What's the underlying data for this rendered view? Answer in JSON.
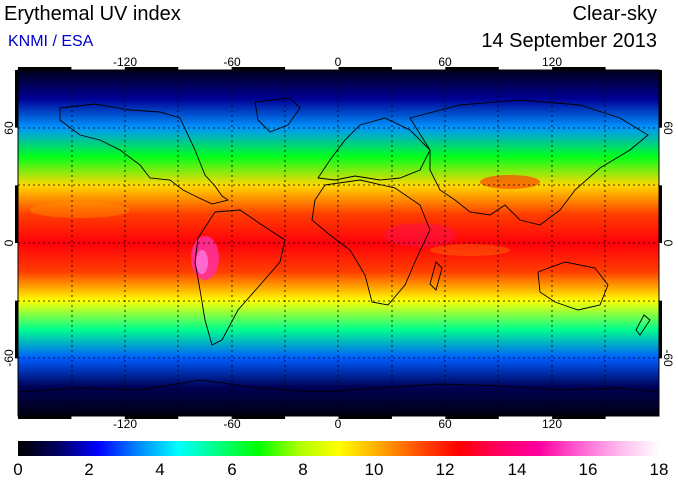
{
  "header": {
    "title": "Erythemal UV index",
    "source": "KNMI / ESA",
    "mode": "Clear-sky",
    "date": "14 September 2013"
  },
  "map": {
    "lon_range": [
      -180,
      180
    ],
    "lat_range": [
      -90,
      90
    ],
    "grid_lines": true,
    "lon_ticks": [
      "-120",
      "-60",
      "0",
      "60",
      "120"
    ],
    "lat_ticks": [
      "60",
      "0",
      "-60"
    ],
    "coastlines": true
  },
  "colorbar": {
    "min": 0,
    "max": 18,
    "tick_labels": [
      "0",
      "2",
      "4",
      "6",
      "8",
      "10",
      "12",
      "14",
      "16",
      "18"
    ],
    "colors": [
      "#000000",
      "#000060",
      "#0000ff",
      "#0088ff",
      "#00ffff",
      "#00ff80",
      "#00ff00",
      "#aaff00",
      "#ffff00",
      "#ffaa00",
      "#ff5000",
      "#ff0000",
      "#ff0060",
      "#ff00a0",
      "#ff60d0",
      "#ffb8ee",
      "#ffffff"
    ]
  },
  "chart_data": {
    "type": "heatmap",
    "title": "Erythemal UV index",
    "variable": "Erythemal UV index",
    "units": "",
    "latitudes": [
      90,
      75,
      60,
      45,
      30,
      15,
      0,
      -15,
      -30,
      -45,
      -60,
      -75,
      -90
    ],
    "zonal_mean_uv_index": [
      0.3,
      1.5,
      3.5,
      6.5,
      9.5,
      11.5,
      12.5,
      11.5,
      9,
      5.5,
      3,
      1,
      0.2
    ],
    "colorbar_range": [
      0,
      18
    ]
  }
}
